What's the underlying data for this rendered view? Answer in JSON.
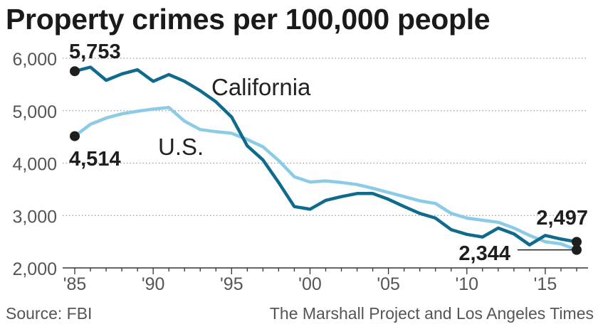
{
  "title": "Property crimes per 100,000 people",
  "source": "Source: FBI",
  "credit": "The Marshall Project and Los Angeles Times",
  "chart_data": {
    "type": "line",
    "title": "Property crimes per 100,000 people",
    "x": [
      1985,
      1986,
      1987,
      1988,
      1989,
      1990,
      1991,
      1992,
      1993,
      1994,
      1995,
      1996,
      1997,
      1998,
      1999,
      2000,
      2001,
      2002,
      2003,
      2004,
      2005,
      2006,
      2007,
      2008,
      2009,
      2010,
      2011,
      2012,
      2013,
      2014,
      2015,
      2016,
      2017
    ],
    "x_ticks": [
      {
        "value": 1985,
        "label": "'85"
      },
      {
        "value": 1990,
        "label": "'90"
      },
      {
        "value": 1995,
        "label": "'95"
      },
      {
        "value": 2000,
        "label": "'00"
      },
      {
        "value": 2005,
        "label": "'05"
      },
      {
        "value": 2010,
        "label": "'10"
      },
      {
        "value": 2015,
        "label": "'15"
      }
    ],
    "y_ticks": [
      {
        "value": 2000,
        "label": "2,000"
      },
      {
        "value": 3000,
        "label": "3,000"
      },
      {
        "value": 4000,
        "label": "4,000"
      },
      {
        "value": 5000,
        "label": "5,000"
      },
      {
        "value": 6000,
        "label": "6,000"
      }
    ],
    "xlim": [
      1985,
      2017
    ],
    "ylim": [
      2000,
      6000
    ],
    "grid": true,
    "series": [
      {
        "name": "California",
        "color": "#0f6b8c",
        "values": [
          5753,
          5830,
          5580,
          5700,
          5780,
          5560,
          5690,
          5560,
          5380,
          5170,
          4880,
          4330,
          4060,
          3630,
          3170,
          3120,
          3290,
          3360,
          3420,
          3420,
          3310,
          3170,
          3040,
          2950,
          2730,
          2640,
          2590,
          2760,
          2650,
          2440,
          2620,
          2550,
          2497
        ]
      },
      {
        "name": "U.S.",
        "color": "#8ccbe6",
        "values": [
          4514,
          4740,
          4860,
          4940,
          4990,
          5030,
          5060,
          4800,
          4640,
          4600,
          4570,
          4450,
          4310,
          4050,
          3740,
          3640,
          3660,
          3630,
          3590,
          3520,
          3440,
          3360,
          3280,
          3230,
          3040,
          2950,
          2910,
          2870,
          2760,
          2620,
          2500,
          2460,
          2344
        ]
      }
    ],
    "annotations": [
      {
        "label": "5,753",
        "series": "California",
        "x": 1985
      },
      {
        "label": "4,514",
        "series": "U.S.",
        "x": 1985
      },
      {
        "label": "2,497",
        "series": "California",
        "x": 2017
      },
      {
        "label": "2,344",
        "series": "U.S.",
        "x": 2017
      }
    ]
  }
}
